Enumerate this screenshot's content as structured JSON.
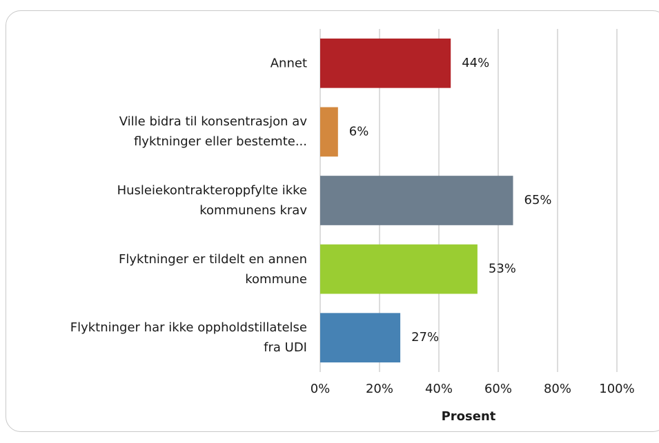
{
  "chart_data": {
    "type": "bar",
    "orientation": "horizontal",
    "categories": [
      "Annet",
      "Ville bidra til konsentrasjon av\nflyktninger eller bestemte...",
      "Husleiekontrakteroppfylte ikke\nkommunens krav",
      "Flyktninger er tildelt en annen\nkommune",
      "Flyktninger har ikke oppholdstillatelse\nfra UDI"
    ],
    "values": [
      44,
      6,
      65,
      53,
      27
    ],
    "value_labels": [
      "44%",
      "6%",
      "65%",
      "53%",
      "27%"
    ],
    "colors": [
      "#b22226",
      "#d3883e",
      "#6d7e8e",
      "#9acd32",
      "#4682b4"
    ],
    "xlabel": "Prosent",
    "xlim": [
      0,
      100
    ],
    "xticks": [
      {
        "value": 0,
        "label": "0%"
      },
      {
        "value": 20,
        "label": "20%"
      },
      {
        "value": 40,
        "label": "40%"
      },
      {
        "value": 60,
        "label": "60%"
      },
      {
        "value": 80,
        "label": "80%"
      },
      {
        "value": 100,
        "label": "100%"
      }
    ],
    "grid": true
  }
}
